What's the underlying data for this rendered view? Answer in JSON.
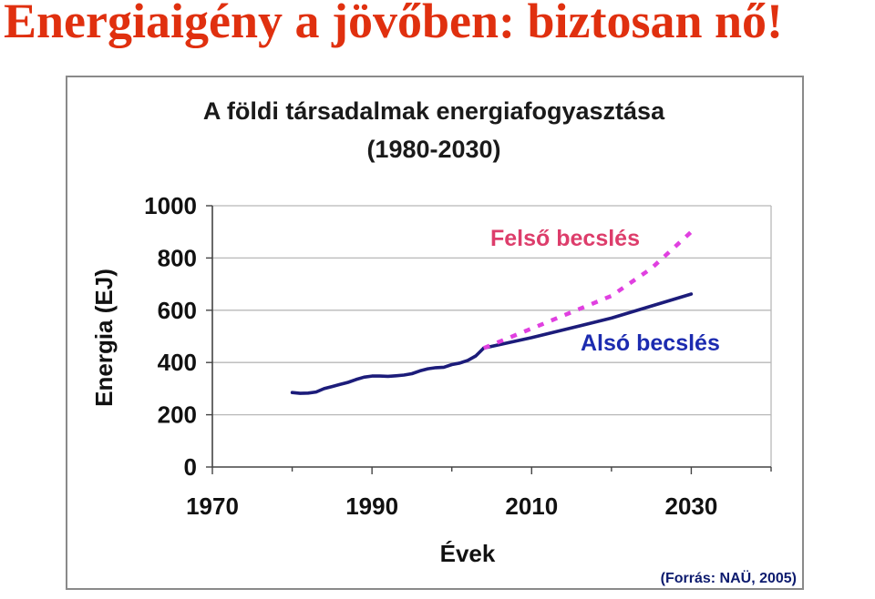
{
  "slide": {
    "title": "Energiaigény a jövőben: biztosan nő!",
    "title_color": "#e0300f"
  },
  "chart_data": {
    "type": "line",
    "title": "A földi társadalmak energiafogyasztása",
    "subtitle": "(1980-2030)",
    "xlabel": "Évek",
    "ylabel": "Energia (EJ)",
    "xlim": [
      1970,
      2040
    ],
    "ylim": [
      0,
      1000
    ],
    "xticks": [
      1970,
      1990,
      2010,
      2030
    ],
    "yticks": [
      0,
      200,
      400,
      600,
      800,
      1000
    ],
    "grid": true,
    "source": "(Forrás: NAÜ, 2005)",
    "series": [
      {
        "name": "",
        "color": "#1c1c7a",
        "style": "solid",
        "x": [
          1980,
          1981,
          1982,
          1983,
          1984,
          1985,
          1986,
          1987,
          1988,
          1989,
          1990,
          1991,
          1992,
          1993,
          1994,
          1995,
          1996,
          1997,
          1998,
          1999,
          2000,
          2001,
          2002,
          2003,
          2004
        ],
        "y": [
          285,
          282,
          283,
          287,
          300,
          308,
          316,
          324,
          335,
          344,
          348,
          348,
          347,
          349,
          352,
          357,
          368,
          376,
          380,
          382,
          392,
          398,
          408,
          425,
          455
        ]
      },
      {
        "name": "Alsó becslés",
        "color": "#1c1c7a",
        "style": "solid",
        "x": [
          2004,
          2010,
          2020,
          2030
        ],
        "y": [
          455,
          495,
          570,
          662
        ]
      },
      {
        "name": "Felső becslés",
        "color": "#e040e0",
        "style": "dashed",
        "x": [
          2004,
          2010,
          2020,
          2025,
          2030
        ],
        "y": [
          455,
          530,
          655,
          760,
          900
        ]
      }
    ]
  }
}
